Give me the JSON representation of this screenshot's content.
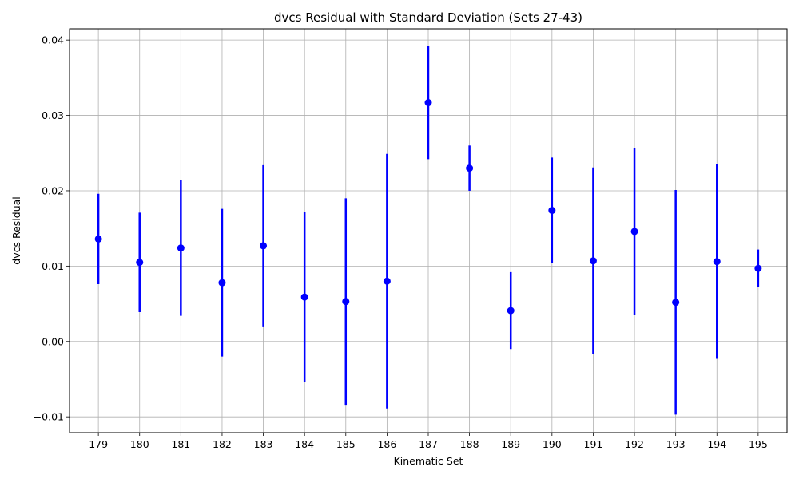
{
  "chart_data": {
    "type": "scatter",
    "title": "dvcs Residual with Standard Deviation (Sets 27-43)",
    "xlabel": "Kinematic Set",
    "ylabel": "dvcs Residual",
    "categories": [
      "179",
      "180",
      "181",
      "182",
      "183",
      "184",
      "185",
      "186",
      "187",
      "188",
      "189",
      "190",
      "191",
      "192",
      "193",
      "194",
      "195"
    ],
    "values": [
      0.0136,
      0.0105,
      0.0124,
      0.0078,
      0.0127,
      0.0059,
      0.0053,
      0.008,
      0.0317,
      0.023,
      0.0041,
      0.0174,
      0.0107,
      0.0146,
      0.0052,
      0.0106,
      0.0097
    ],
    "errors": [
      0.006,
      0.0066,
      0.009,
      0.0098,
      0.0107,
      0.0113,
      0.0137,
      0.0169,
      0.0075,
      0.003,
      0.0051,
      0.007,
      0.0124,
      0.0111,
      0.0149,
      0.0129,
      0.0025
    ],
    "ylim": [
      -0.0121,
      0.0415
    ],
    "yticks": [
      -0.01,
      0.0,
      0.01,
      0.02,
      0.03,
      0.04
    ],
    "ytick_labels": [
      "−0.01",
      "0.00",
      "0.01",
      "0.02",
      "0.03",
      "0.04"
    ],
    "grid": true,
    "color": "#0000ff"
  }
}
